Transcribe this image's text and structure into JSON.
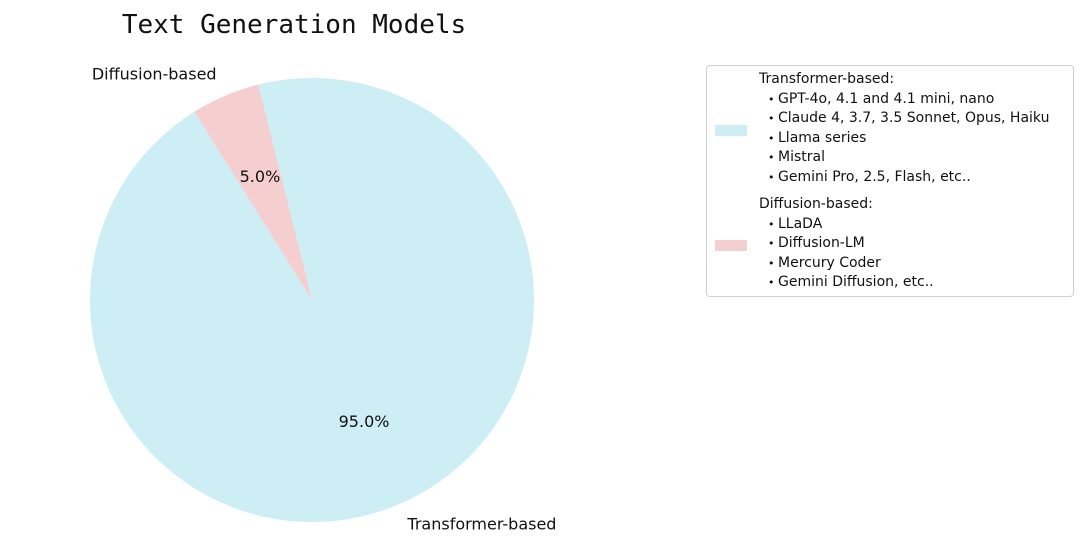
{
  "chart_data": {
    "type": "pie",
    "title": "Text Generation Models",
    "slices": [
      {
        "label": "Transformer-based",
        "value": 95.0,
        "pct_label": "95.0%",
        "color": "#cdeef4"
      },
      {
        "label": "Diffusion-based",
        "value": 5.0,
        "pct_label": "5.0%",
        "color": "#f5cfcf"
      }
    ],
    "legend": {
      "placement": "right",
      "entries": [
        {
          "heading": "Transformer-based:",
          "color": "#cdeef4",
          "items": [
            "GPT-4o, 4.1 and 4.1 mini, nano",
            "Claude 4, 3.7, 3.5 Sonnet, Opus, Haiku",
            "Llama series",
            "Mistral",
            "Gemini Pro, 2.5, Flash, etc.."
          ]
        },
        {
          "heading": "Diffusion-based:",
          "color": "#f5cfcf",
          "items": [
            "LLaDA",
            "Diffusion-LM",
            "Mercury Coder",
            "Gemini Diffusion, etc.."
          ]
        }
      ]
    }
  }
}
